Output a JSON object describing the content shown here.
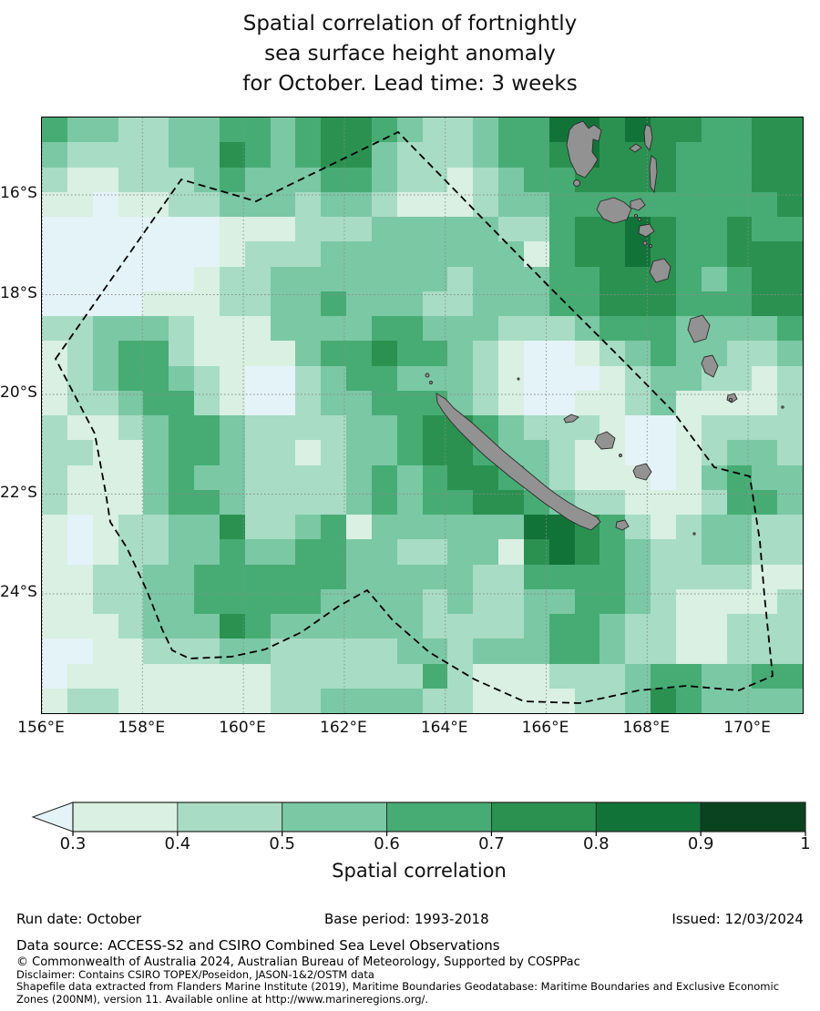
{
  "title": {
    "line1": "Spatial correlation of fortnightly",
    "line2": "sea surface height anomaly",
    "line3": "for October. Lead time: 3 weeks"
  },
  "map": {
    "x_ticks": [
      "156°E",
      "158°E",
      "160°E",
      "162°E",
      "164°E",
      "166°E",
      "168°E",
      "170°E"
    ],
    "y_ticks": [
      "16°S",
      "18°S",
      "20°S",
      "22°S",
      "24°S"
    ],
    "boundary": "New Caledonia EEZ (dashed)",
    "land_features": [
      "Vanuatu archipelago",
      "New Caledonia Grande Terre",
      "Belep Islands",
      "Loyalty Islands (Ouvéa, Lifou, Maré)",
      "Isle of Pines",
      "Erromango",
      "Tanna",
      "Aneityum",
      "Efate",
      "Espiritu Santo",
      "Malakula",
      "Pentecost",
      "Maewo",
      "Ambrym",
      "Epi"
    ]
  },
  "colorbar": {
    "ticks": [
      "0.3",
      "0.4",
      "0.5",
      "0.6",
      "0.7",
      "0.8",
      "0.9",
      "1"
    ],
    "label": "Spatial correlation",
    "under_color": "#e4f3f8",
    "colors": [
      "#d9f0e3",
      "#a8dcc5",
      "#7bc8a4",
      "#47ac74",
      "#2b9150",
      "#127339",
      "#0a431f"
    ]
  },
  "footer": {
    "run_date": "Run date: October",
    "base_period": "Base period: 1993-2018",
    "issued": "Issued: 12/03/2024",
    "data_source": "Data source: ACCESS-S2 and CSIRO Combined Sea Level Observations",
    "copyright": "© Commonwealth of Australia 2024, Australian Bureau of Meteorology, Supported by COSPPac",
    "disclaimer": "Disclaimer: Contains CSIRO TOPEX/Poseidon, JASON-1&2/OSTM data",
    "shapefile1": "Shapefile data extracted from Flanders Marine Institute (2019), Maritime Boundaries Geodatabase: Maritime Boundaries and Exclusive Economic",
    "shapefile2": "Zones (200NM), version 11. Available online at http://www.marineregions.org/."
  },
  "chart_data": {
    "type": "heatmap",
    "title": "Spatial correlation of fortnightly sea surface height anomaly for October. Lead time: 3 weeks",
    "variable": "Spatial correlation",
    "lon_range": [
      156.0,
      171.1
    ],
    "lat_range": [
      -26.4,
      -14.4
    ],
    "cell_size_deg": 0.5,
    "levels": [
      0.3,
      0.4,
      0.5,
      0.6,
      0.7,
      0.8,
      0.9,
      1.0
    ],
    "level_meaning": "digit k in grid rows = correlation bin; 0 = below 0.3 (under-arrow colour), 1 = 0.3-0.4, 2 = 0.4-0.5, 3 = 0.5-0.6, 4 = 0.6-0.7, 5 = 0.7-0.8, 6 = 0.8-0.9, 7 = 0.9-1.0",
    "palette": [
      "#e4f3f8",
      "#d9f0e3",
      "#a8dcc5",
      "#7bc8a4",
      "#47ac74",
      "#2b9150",
      "#127339",
      "#0a431f"
    ],
    "grid": {
      "ncols": 30,
      "nrows": 24,
      "origin": "top-left (156°E, 14.4°S), rows southward",
      "rows": [
        "433223344345543223446656554455",
        "322223354345532223445655544455",
        "211222343334432212344555544455",
        "110112233323321112334444444445",
        "000000011122233333224556544544",
        "000000012223333333314556544555",
        "000000122333333323334455543455",
        "000011122334333223334455544455",
        "223332111333344333222344433334",
        "123442111134454432100123433223",
        "123443210023443332100012332212",
        "122344210023344432100112311112",
        "211234432222334554322210012222",
        "221134432212334554332110012332",
        "211134332222343455432111013433",
        "211134432222343445543221112443",
        "101223352234133333366542123322",
        "101223343344332233156543223322",
        "112233444444333332244443222211",
        "112233444443333232233443211112",
        "111233354333333222234432211222",
        "001122233222223323334432211222",
        "011111111222222421112223443344",
        "122111111223333221111223543333"
      ]
    },
    "legend_position": "bottom horizontal colorbar with left under-arrow",
    "grid_lines": "2° graticule, dotted gray"
  }
}
